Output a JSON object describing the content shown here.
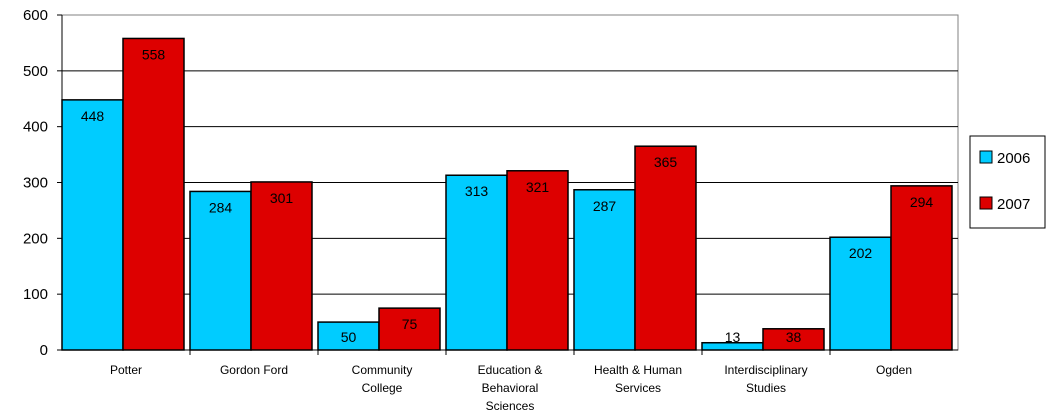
{
  "chart_data": {
    "type": "bar",
    "title": "",
    "xlabel": "",
    "ylabel": "",
    "ylim": [
      0,
      600
    ],
    "yticks": [
      0,
      100,
      200,
      300,
      400,
      500,
      600
    ],
    "grid": true,
    "legend_position": "right",
    "categories": [
      [
        "Potter"
      ],
      [
        "Gordon Ford"
      ],
      [
        "Community",
        "College"
      ],
      [
        "Education &",
        "Behavioral",
        "Sciences"
      ],
      [
        "Health & Human",
        "Services"
      ],
      [
        "Interdisciplinary",
        "Studies"
      ],
      [
        "Ogden"
      ]
    ],
    "series": [
      {
        "name": "2006",
        "color": "#00ccff",
        "values": [
          448,
          284,
          50,
          313,
          287,
          13,
          202
        ]
      },
      {
        "name": "2007",
        "color": "#dd0000",
        "values": [
          558,
          301,
          75,
          321,
          365,
          38,
          294
        ]
      }
    ]
  }
}
